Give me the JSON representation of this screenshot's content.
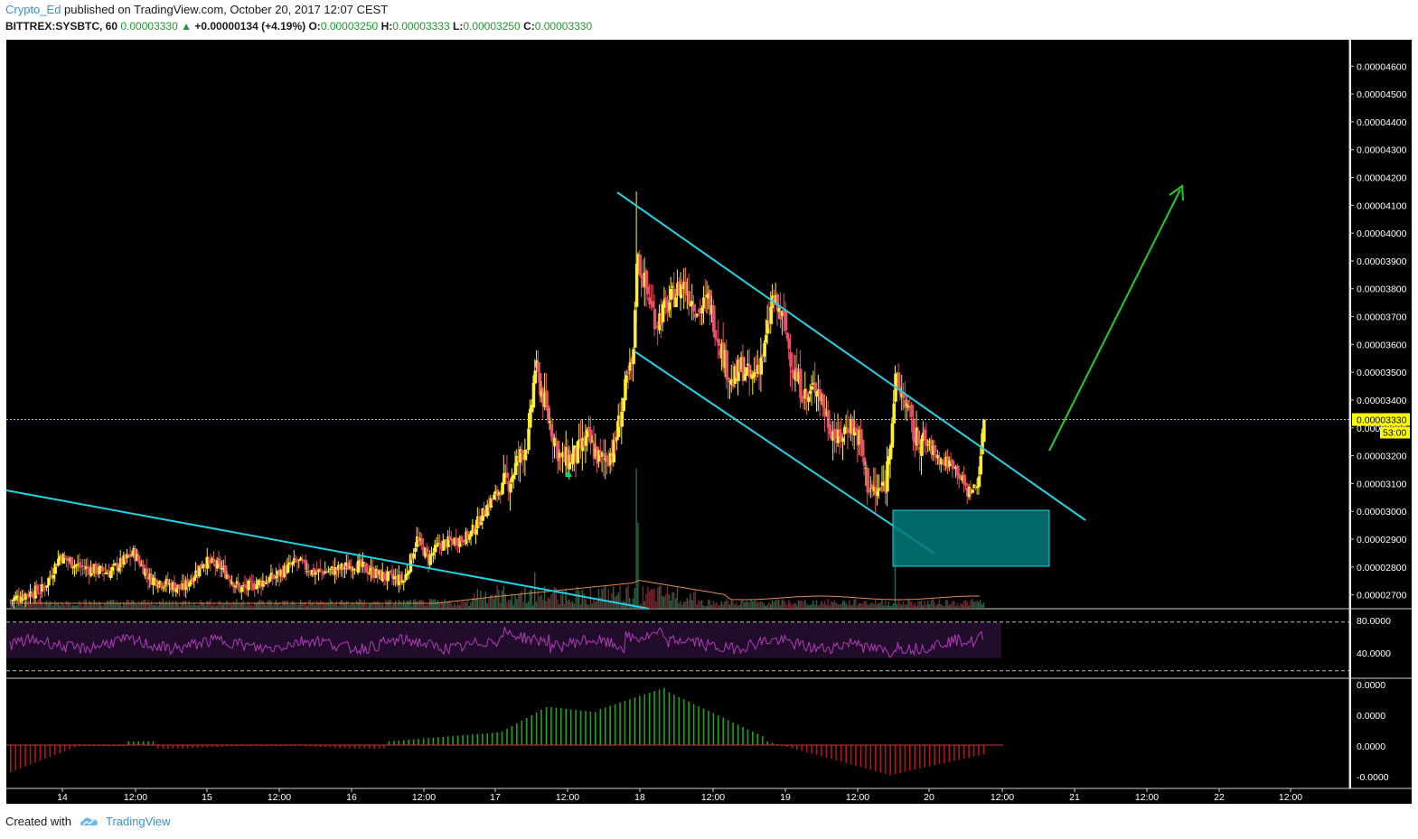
{
  "header": {
    "author": "Crypto_Ed",
    "published_text": "published on TradingView.com, October 20, 2017 12:07 CEST",
    "symbol": "BITTREX:SYSBTC, 60",
    "last": "0.00003330",
    "change": "+0.00000134 (+4.19%)",
    "open_label": "O:",
    "open": "0.00003250",
    "high_label": "H:",
    "high": "0.00003333",
    "low_label": "L:",
    "low": "0.00003250",
    "close_label": "C:",
    "close": "0.00003330"
  },
  "footer": {
    "created_with": "Created with",
    "brand": "TradingView"
  },
  "colors": {
    "up": "#ffee33",
    "down": "#e8506a",
    "trendline": "#22d3e6",
    "arrow": "#22cc22",
    "box_fill": "#007a78",
    "rsi": "#b03ab8",
    "price_line": "#d8d800"
  },
  "chart_data": {
    "type": "candlestick",
    "price_axis": {
      "ticks": [
        "0.00004600",
        "0.00004500",
        "0.00004400",
        "0.00004300",
        "0.00004200",
        "0.00004100",
        "0.00004000",
        "0.00003900",
        "0.00003800",
        "0.00003700",
        "0.00003600",
        "0.00003500",
        "0.00003400",
        "0.00003300",
        "0.00003200",
        "0.00003100",
        "0.00003000",
        "0.00002900",
        "0.00002800",
        "0.00002700"
      ],
      "range": [
        2.65e-05,
        4.695e-05
      ],
      "last_price_label": "0.00003330",
      "countdown_label": "53:00"
    },
    "x_axis": {
      "labels": [
        "14",
        "12:00",
        "15",
        "12:00",
        "16",
        "12:00",
        "17",
        "12:00",
        "18",
        "12:00",
        "19",
        "12:00",
        "20",
        "12:00",
        "21",
        "12:00",
        "22",
        "12:00"
      ],
      "start": "Oct 13, 2017 ~11:00",
      "end": "Oct 20, 2017 12:00",
      "future_end_label": "22 12:00"
    },
    "key_prices": {
      "peak_high": 4.15e-05,
      "channel_low": 3.05e-05,
      "last_close": 3.33e-05
    },
    "rsi": {
      "ticks": [
        "80.0000",
        "40.0000"
      ],
      "bands": [
        70,
        30
      ]
    },
    "oscillator": {
      "ticks": [
        "0.0000",
        "0.0000",
        "0.0000",
        "-0.0000"
      ]
    },
    "annotations": {
      "descending_channel_upper": [
        "Oct 17 ~16:00 @ 0.0000415",
        "Oct 21 ~02:00 @ 0.0000297"
      ],
      "descending_channel_lower": [
        "Oct 17 ~18:00 @ 0.0000359",
        "Oct 20 ~00:00 @ 0.0000284"
      ],
      "long_trendline": [
        "Oct 13 @ 0.0000308",
        "Oct 17 ~22:00 @ 0.0000265"
      ],
      "support_box": [
        "Oct 19 ~14:00 to Oct 20 ~08:00",
        "0.0000280 - 0.0000300"
      ],
      "projection_arrow": [
        "Oct 20 ~18:00 @ 0.0000322",
        "Oct 21 ~12:00 @ 0.0000418"
      ]
    }
  }
}
